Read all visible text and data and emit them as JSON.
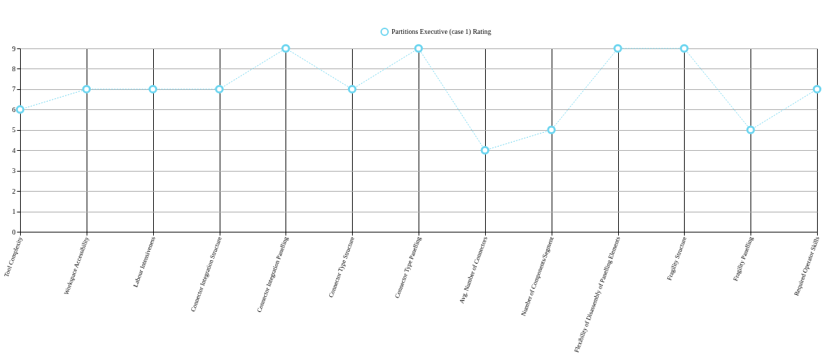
{
  "chart_data": {
    "type": "line",
    "categories": [
      "Tool Complexity",
      "Workspace Accessibility",
      "Labour Intensiveness",
      "Connector Integration Structure",
      "Connector Integration Panelling",
      "Connector Type Structure",
      "Connector Type Panelling",
      "Avg. Number of Connectors",
      "Number of Components/Segment",
      "Flexibility of Disassembly of Panelling Elements",
      "Fragility Structure",
      "Fragility Panelling",
      "Required Operator Skills"
    ],
    "series": [
      {
        "name": "Partitions Executive (case 1) Rating",
        "color": "#6fd6f0",
        "values": [
          6,
          7,
          7,
          7,
          9,
          7,
          9,
          4,
          5,
          9,
          9,
          5,
          7
        ]
      }
    ],
    "ylim": [
      0,
      9
    ],
    "yticks": [
      0,
      1,
      2,
      3,
      4,
      5,
      6,
      7,
      8,
      9
    ],
    "grid": true,
    "legend": "top",
    "marker": "circle",
    "line_style": "dotted"
  }
}
